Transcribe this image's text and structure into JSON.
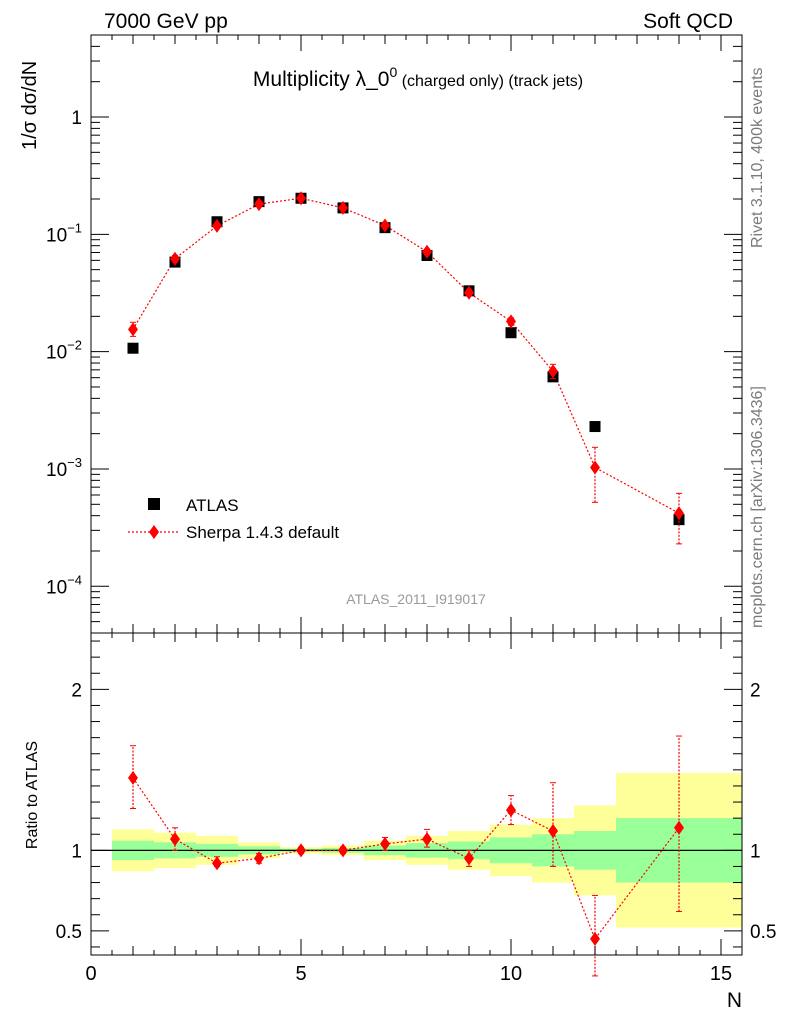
{
  "header": {
    "left": "7000 GeV pp",
    "right": "Soft QCD"
  },
  "side_labels": {
    "rivet": "Rivet 3.1.10,  400k events",
    "mcplots": "mcplots.cern.ch [arXiv:1306.3436]"
  },
  "colors": {
    "data": "#000000",
    "mc": "#ff0000",
    "band_inner": "#99ff99",
    "band_outer": "#ffff99"
  },
  "chart_data": [
    {
      "type": "scatter",
      "panel": "main",
      "title_main": "Multiplicity λ_0",
      "title_sup": "0",
      "title_sub": " (charged only) (track jets)",
      "ylabel": "1/σ dσ/dN",
      "y_scale": "log",
      "ylim": [
        4e-05,
        5
      ],
      "xlim": [
        0,
        15.5
      ],
      "y_ticks": [
        {
          "value": 1,
          "mant": "1",
          "exp": ""
        },
        {
          "value": 0.1,
          "mant": "10",
          "exp": "−1"
        },
        {
          "value": 0.01,
          "mant": "10",
          "exp": "−2"
        },
        {
          "value": 0.001,
          "mant": "10",
          "exp": "−3"
        },
        {
          "value": 0.0001,
          "mant": "10",
          "exp": "−4"
        }
      ],
      "watermark": "ATLAS_2011_I919017",
      "legend_position": "bottom-left",
      "series": [
        {
          "name": "ATLAS",
          "marker": "square",
          "x": [
            1,
            2,
            3,
            4,
            5,
            6,
            7,
            8,
            9,
            10,
            11,
            12,
            14
          ],
          "y": [
            0.0107,
            0.058,
            0.128,
            0.19,
            0.203,
            0.168,
            0.114,
            0.066,
            0.033,
            0.0145,
            0.0061,
            0.0023,
            0.00037
          ]
        },
        {
          "name": "Sherpa 1.4.3 default",
          "marker": "diamond",
          "line": "dotted",
          "x": [
            1,
            2,
            3,
            4,
            5,
            6,
            7,
            8,
            9,
            10,
            11,
            12,
            14
          ],
          "y": [
            0.0155,
            0.062,
            0.118,
            0.181,
            0.203,
            0.168,
            0.119,
            0.071,
            0.0318,
            0.0181,
            0.0068,
            0.00103,
            0.00042
          ],
          "y_err_low": [
            0.0135,
            0.058,
            0.112,
            0.173,
            0.196,
            0.162,
            0.114,
            0.067,
            0.0298,
            0.0168,
            0.0059,
            0.00052,
            0.00023
          ],
          "y_err_high": [
            0.0178,
            0.066,
            0.124,
            0.189,
            0.21,
            0.174,
            0.124,
            0.075,
            0.0338,
            0.0194,
            0.0078,
            0.00153,
            0.00062
          ]
        }
      ]
    },
    {
      "type": "scatter",
      "panel": "ratio",
      "ylabel": "Ratio to ATLAS",
      "xlabel": "N",
      "xlim": [
        0,
        15.5
      ],
      "ylim": [
        0.35,
        2.35
      ],
      "x_ticks": [
        0,
        5,
        10,
        15
      ],
      "y_ticks": [
        0.5,
        1,
        2
      ],
      "bands": {
        "edges": [
          0.5,
          1.5,
          2.5,
          3.5,
          4.5,
          5.5,
          6.5,
          7.5,
          8.5,
          9.5,
          10.5,
          11.5,
          12.5,
          15.5
        ],
        "inner_low": [
          0.94,
          0.95,
          0.96,
          0.975,
          0.99,
          0.985,
          0.97,
          0.955,
          0.945,
          0.92,
          0.9,
          0.88,
          0.8
        ],
        "inner_high": [
          1.06,
          1.05,
          1.04,
          1.025,
          1.01,
          1.015,
          1.03,
          1.045,
          1.055,
          1.08,
          1.1,
          1.12,
          1.2
        ],
        "outer_low": [
          0.87,
          0.89,
          0.91,
          0.95,
          0.98,
          0.97,
          0.94,
          0.91,
          0.88,
          0.84,
          0.8,
          0.72,
          0.52
        ],
        "outer_high": [
          1.13,
          1.11,
          1.09,
          1.05,
          1.02,
          1.03,
          1.06,
          1.09,
          1.12,
          1.16,
          1.2,
          1.28,
          1.48
        ]
      },
      "series": [
        {
          "name": "Sherpa 1.4.3 default",
          "x": [
            1,
            2,
            3,
            4,
            5,
            6,
            7,
            8,
            9,
            10,
            11,
            12,
            14
          ],
          "y": [
            1.45,
            1.07,
            0.92,
            0.95,
            1.0,
            1.0,
            1.04,
            1.07,
            0.95,
            1.25,
            1.12,
            0.45,
            1.14
          ],
          "y_err_low": [
            1.26,
            1.0,
            0.9,
            0.92,
            0.98,
            0.98,
            1.0,
            1.02,
            0.9,
            1.16,
            0.9,
            0.22,
            0.62
          ],
          "y_err_high": [
            1.65,
            1.14,
            0.96,
            0.98,
            1.02,
            1.02,
            1.08,
            1.13,
            1.0,
            1.34,
            1.42,
            0.72,
            1.71
          ]
        }
      ]
    }
  ]
}
